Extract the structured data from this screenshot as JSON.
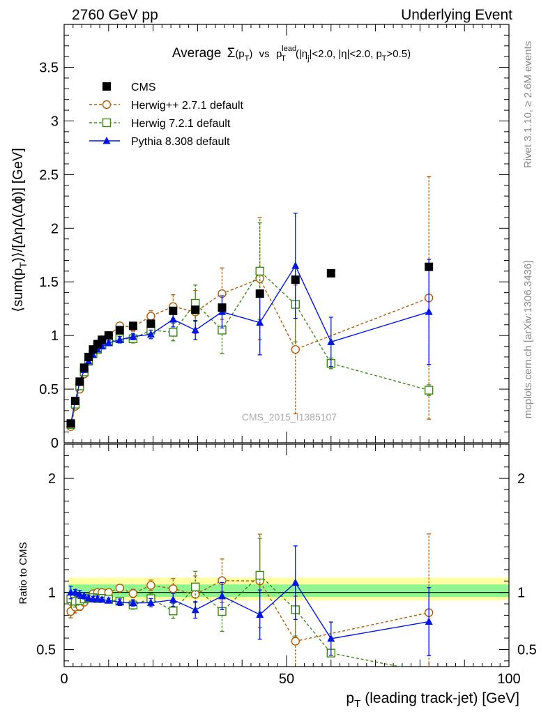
{
  "header": {
    "left": "2760 GeV pp",
    "right": "Underlying Event"
  },
  "side_labels": {
    "rivet": "Rivet 3.1.10, ≥ 2.6M events",
    "mcplots": "mcplots.cern.ch [arXiv:1306.3436]"
  },
  "watermark": "CMS_2015_I1385107",
  "chart_data": {
    "type": "scatter",
    "title": "Average Σ(pT) vs pT lead (|ηj|<2.0, |η|<2.0, pT>0.5)",
    "title_parts": {
      "average": "Average",
      "sigma": "Σ",
      "p": "(p",
      "T": "T",
      "close": ")",
      "vs": "vs",
      "p2": "p",
      "lead": "lead",
      "T2": "T",
      "tail_a": "(|η",
      "j": "j",
      "tail_b": "|<2.0, |η|<2.0, p",
      "T3": "T",
      "tail_c": ">0.5)"
    },
    "xlabel": "p_T (leading track-jet) [GeV]",
    "xlabel_parts": {
      "p": "p",
      "T": "T",
      "rest": "(leading track-jet) [GeV]"
    },
    "ylabel": "⟨sum(p_T)⟩/[ΔηΔ(Δϕ)] [GeV]",
    "ylabel_parts": {
      "a": "⟨sum(p",
      "T": "T",
      "b": ")⟩/[ΔηΔ(Δϕ)] [GeV]"
    },
    "ratio_ylabel": "Ratio to CMS",
    "xlim": [
      0,
      100
    ],
    "ylim": [
      0,
      3.9
    ],
    "ratio_ylim": [
      0.35,
      2.3
    ],
    "x_ticks": [
      "0",
      "50",
      "100"
    ],
    "y_ticks": [
      "0",
      "0.5",
      "1",
      "1.5",
      "2",
      "2.5",
      "3",
      "3.5"
    ],
    "ratio_ticks": [
      "0.5",
      "1",
      "2"
    ],
    "series": [
      {
        "name": "CMS",
        "style": "data",
        "color": "#000000",
        "x": [
          1.5,
          2.5,
          3.5,
          4.5,
          5.5,
          6.5,
          7.5,
          8.5,
          10,
          12.5,
          15.5,
          19.5,
          24.5,
          29.5,
          35.5,
          44,
          52,
          60,
          82
        ],
        "y": [
          0.18,
          0.39,
          0.57,
          0.7,
          0.8,
          0.87,
          0.92,
          0.96,
          1.0,
          1.05,
          1.09,
          1.11,
          1.23,
          1.24,
          1.26,
          1.39,
          1.52,
          1.58,
          1.64
        ],
        "err": [
          0.01,
          0.01,
          0.01,
          0.01,
          0.01,
          0.01,
          0.01,
          0.01,
          0.01,
          0.01,
          0.01,
          0.01,
          0.01,
          0.01,
          0.01,
          0.02,
          0.02,
          0.02,
          0.03
        ]
      },
      {
        "name": "Herwig++ 2.7.1 default",
        "style": "circle",
        "color": "#b35a00",
        "x": [
          1.5,
          2.5,
          3.5,
          4.5,
          5.5,
          6.5,
          7.5,
          8.5,
          10,
          12.5,
          15.5,
          19.5,
          24.5,
          29.5,
          35.5,
          44,
          52,
          82
        ],
        "y": [
          0.15,
          0.34,
          0.5,
          0.64,
          0.76,
          0.86,
          0.92,
          0.96,
          1.0,
          1.09,
          1.08,
          1.18,
          1.27,
          1.22,
          1.39,
          1.53,
          0.87,
          1.35
        ],
        "err": [
          0.01,
          0.02,
          0.02,
          0.02,
          0.02,
          0.02,
          0.02,
          0.02,
          0.03,
          0.03,
          0.04,
          0.05,
          0.11,
          0.2,
          0.24,
          0.57,
          0.6,
          1.13
        ]
      },
      {
        "name": "Herwig 7.2.1 default",
        "style": "square",
        "color": "#3a8a10",
        "x": [
          1.5,
          2.5,
          3.5,
          4.5,
          5.5,
          6.5,
          7.5,
          8.5,
          10,
          12.5,
          15.5,
          19.5,
          24.5,
          29.5,
          35.5,
          44,
          52,
          60,
          82
        ],
        "y": [
          0.17,
          0.36,
          0.53,
          0.66,
          0.76,
          0.83,
          0.87,
          0.91,
          0.94,
          0.97,
          0.97,
          1.05,
          1.03,
          1.3,
          1.05,
          1.6,
          1.29,
          0.74,
          0.49
        ],
        "err": [
          0.01,
          0.02,
          0.02,
          0.02,
          0.02,
          0.02,
          0.02,
          0.02,
          0.03,
          0.03,
          0.04,
          0.05,
          0.08,
          0.17,
          0.22,
          0.45,
          0.35,
          0.05,
          0.05
        ]
      },
      {
        "name": "Pythia 8.308 default",
        "style": "triangle",
        "color": "#0015e6",
        "x": [
          1.5,
          2.5,
          3.5,
          4.5,
          5.5,
          6.5,
          7.5,
          8.5,
          10,
          12.5,
          15.5,
          19.5,
          24.5,
          29.5,
          35.5,
          44,
          52,
          60,
          82
        ],
        "y": [
          0.18,
          0.39,
          0.56,
          0.68,
          0.76,
          0.82,
          0.87,
          0.9,
          0.93,
          0.96,
          0.99,
          1.01,
          1.15,
          1.05,
          1.22,
          1.12,
          1.65,
          0.94,
          1.22
        ],
        "err": [
          0.01,
          0.01,
          0.02,
          0.02,
          0.02,
          0.02,
          0.02,
          0.02,
          0.02,
          0.03,
          0.03,
          0.04,
          0.07,
          0.09,
          0.15,
          0.3,
          0.49,
          0.23,
          0.49
        ]
      }
    ]
  }
}
